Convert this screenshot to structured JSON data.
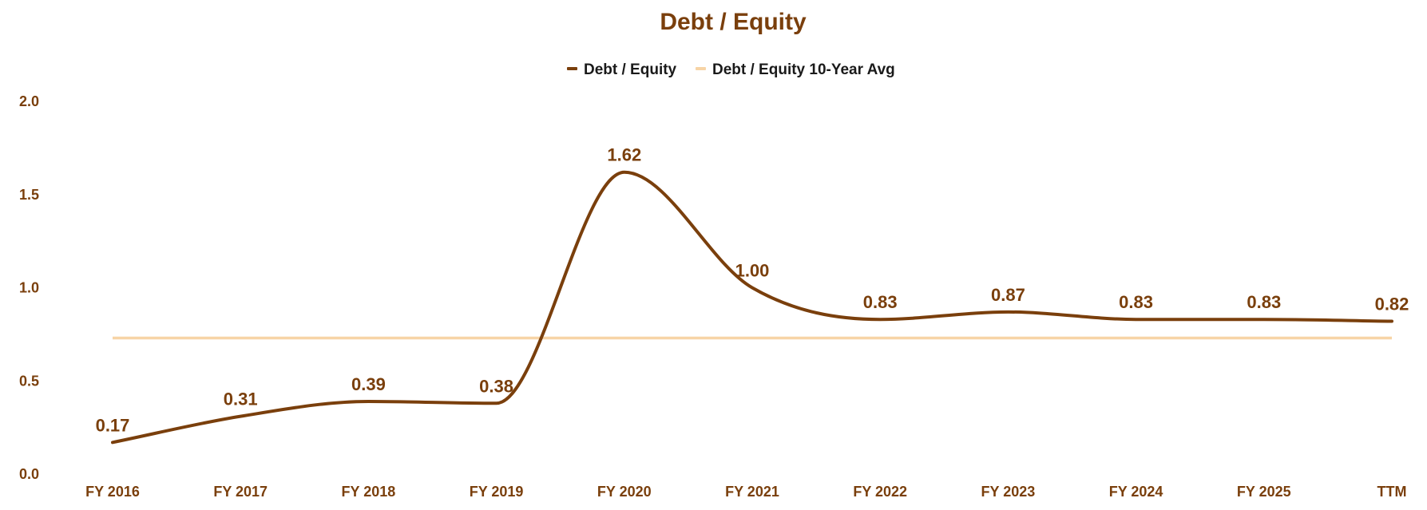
{
  "chart_data": {
    "type": "line",
    "title": "Debt / Equity",
    "categories": [
      "FY 2016",
      "FY 2017",
      "FY 2018",
      "FY 2019",
      "FY 2020",
      "FY 2021",
      "FY 2022",
      "FY 2023",
      "FY 2024",
      "FY 2025",
      "TTM"
    ],
    "series": [
      {
        "name": "Debt / Equity",
        "values": [
          0.17,
          0.31,
          0.39,
          0.38,
          1.62,
          1.0,
          0.83,
          0.87,
          0.83,
          0.83,
          0.82
        ],
        "labels": [
          "0.17",
          "0.31",
          "0.39",
          "0.38",
          "1.62",
          "1.00",
          "0.83",
          "0.87",
          "0.83",
          "0.83",
          "0.82"
        ],
        "color": "#7a3f0c"
      },
      {
        "name": "Debt / Equity 10-Year Avg",
        "value": 0.73,
        "color": "#f7d4a6"
      }
    ],
    "yticks": [
      "0.0",
      "0.5",
      "1.0",
      "1.5",
      "2.0"
    ],
    "ylim": [
      0,
      2.0
    ],
    "xlabel": "",
    "ylabel": "",
    "grid": false,
    "legend_position": "top-center",
    "text_color": "#7a3f0c"
  }
}
